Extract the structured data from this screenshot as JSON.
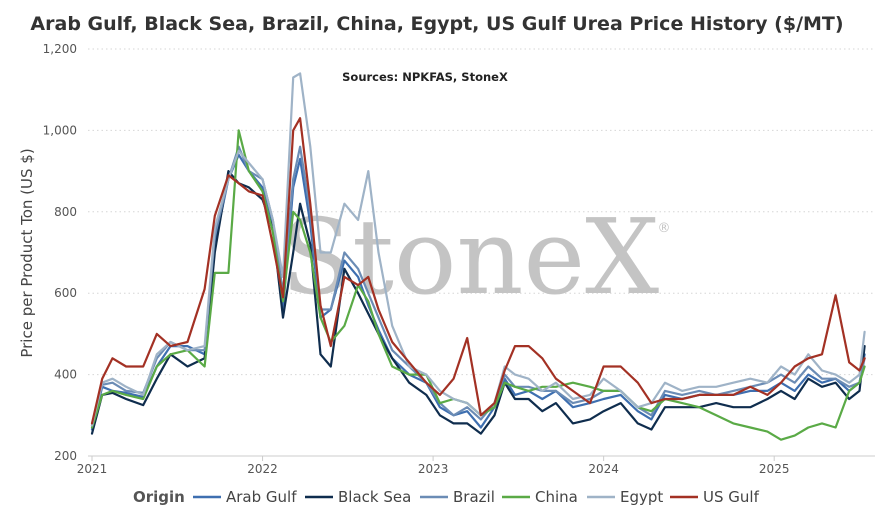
{
  "chart_data": {
    "type": "line",
    "title": "Arab Gulf, Black Sea, Brazil, China, Egypt, US Gulf Urea Price History ($/MT)",
    "subtitle": "Sources: NPKFAS, StoneX",
    "watermark": "StoneX",
    "watermark_mark": "®",
    "ylabel": "Price per Product Ton (US $)",
    "xlabel": "",
    "xlim": [
      2021.0,
      2025.55
    ],
    "ylim": [
      200,
      1200
    ],
    "yticks": [
      200,
      400,
      600,
      800,
      1000,
      1200
    ],
    "ytick_labels": [
      "200",
      "400",
      "600",
      "800",
      "1,000",
      "1,200"
    ],
    "xticks": [
      2021,
      2022,
      2023,
      2024,
      2025
    ],
    "xtick_labels": [
      "2021",
      "2022",
      "2023",
      "2024",
      "2025"
    ],
    "grid": "horizontal-dotted",
    "legend": {
      "title": "Origin",
      "position": "bottom"
    },
    "series": [
      {
        "name": "Arab Gulf",
        "color": "#3e6fb0",
        "x": [
          2021.0,
          2021.06,
          2021.12,
          2021.2,
          2021.3,
          2021.38,
          2021.46,
          2021.56,
          2021.66,
          2021.72,
          2021.8,
          2021.86,
          2021.92,
          2022.0,
          2022.06,
          2022.12,
          2022.18,
          2022.22,
          2022.28,
          2022.34,
          2022.4,
          2022.48,
          2022.56,
          2022.62,
          2022.68,
          2022.76,
          2022.86,
          2022.96,
          2023.04,
          2023.12,
          2023.2,
          2023.28,
          2023.36,
          2023.42,
          2023.48,
          2023.56,
          2023.64,
          2023.72,
          2023.82,
          2023.92,
          2024.0,
          2024.1,
          2024.2,
          2024.28,
          2024.36,
          2024.46,
          2024.56,
          2024.66,
          2024.76,
          2024.86,
          2024.96,
          2025.04,
          2025.12,
          2025.2,
          2025.28,
          2025.36,
          2025.44,
          2025.5,
          2025.53
        ],
        "y": [
          265,
          370,
          360,
          355,
          345,
          420,
          470,
          470,
          450,
          720,
          880,
          940,
          900,
          860,
          760,
          560,
          860,
          930,
          770,
          540,
          560,
          680,
          640,
          570,
          510,
          440,
          400,
          380,
          320,
          300,
          310,
          270,
          320,
          390,
          350,
          360,
          340,
          360,
          320,
          330,
          340,
          350,
          310,
          290,
          350,
          340,
          350,
          350,
          350,
          360,
          360,
          380,
          360,
          400,
          380,
          390,
          360,
          380,
          450
        ]
      },
      {
        "name": "Black Sea",
        "color": "#0f2d4e",
        "x": [
          2021.0,
          2021.06,
          2021.12,
          2021.2,
          2021.3,
          2021.38,
          2021.46,
          2021.56,
          2021.66,
          2021.72,
          2021.8,
          2021.86,
          2021.92,
          2022.0,
          2022.06,
          2022.12,
          2022.18,
          2022.22,
          2022.28,
          2022.34,
          2022.4,
          2022.48,
          2022.56,
          2022.62,
          2022.68,
          2022.76,
          2022.86,
          2022.96,
          2023.04,
          2023.12,
          2023.2,
          2023.28,
          2023.36,
          2023.42,
          2023.48,
          2023.56,
          2023.64,
          2023.72,
          2023.82,
          2023.92,
          2024.0,
          2024.1,
          2024.2,
          2024.28,
          2024.36,
          2024.46,
          2024.56,
          2024.66,
          2024.76,
          2024.86,
          2024.96,
          2025.04,
          2025.12,
          2025.2,
          2025.28,
          2025.36,
          2025.44,
          2025.5,
          2025.53
        ],
        "y": [
          255,
          350,
          355,
          340,
          325,
          390,
          450,
          420,
          440,
          700,
          900,
          870,
          860,
          830,
          760,
          540,
          700,
          820,
          720,
          450,
          420,
          660,
          600,
          550,
          500,
          440,
          380,
          350,
          300,
          280,
          280,
          255,
          300,
          380,
          340,
          340,
          310,
          330,
          280,
          290,
          310,
          330,
          280,
          265,
          320,
          320,
          320,
          330,
          320,
          320,
          340,
          360,
          340,
          390,
          370,
          380,
          340,
          360,
          470
        ]
      },
      {
        "name": "Brazil",
        "color": "#6b8cb5",
        "x": [
          2021.0,
          2021.06,
          2021.12,
          2021.2,
          2021.3,
          2021.38,
          2021.46,
          2021.56,
          2021.66,
          2021.72,
          2021.8,
          2021.86,
          2021.92,
          2022.0,
          2022.06,
          2022.12,
          2022.18,
          2022.22,
          2022.28,
          2022.34,
          2022.4,
          2022.48,
          2022.56,
          2022.62,
          2022.68,
          2022.76,
          2022.86,
          2022.96,
          2023.04,
          2023.12,
          2023.2,
          2023.28,
          2023.36,
          2023.42,
          2023.48,
          2023.56,
          2023.64,
          2023.72,
          2023.82,
          2023.92,
          2024.0,
          2024.1,
          2024.2,
          2024.28,
          2024.36,
          2024.46,
          2024.56,
          2024.66,
          2024.76,
          2024.86,
          2024.96,
          2025.04,
          2025.12,
          2025.2,
          2025.28,
          2025.36,
          2025.44,
          2025.5,
          2025.53
        ],
        "y": [
          275,
          375,
          380,
          360,
          355,
          440,
          480,
          460,
          460,
          740,
          880,
          960,
          900,
          880,
          780,
          600,
          880,
          960,
          800,
          560,
          560,
          700,
          660,
          600,
          540,
          460,
          420,
          380,
          330,
          300,
          320,
          290,
          330,
          400,
          370,
          370,
          360,
          360,
          330,
          340,
          360,
          360,
          320,
          300,
          360,
          350,
          360,
          350,
          360,
          370,
          380,
          400,
          380,
          420,
          390,
          390,
          370,
          380,
          440
        ]
      },
      {
        "name": "China",
        "color": "#5aaa46",
        "x": [
          2021.0,
          2021.06,
          2021.12,
          2021.2,
          2021.3,
          2021.38,
          2021.46,
          2021.56,
          2021.66,
          2021.72,
          2021.8,
          2021.86,
          2021.92,
          2022.0,
          2022.06,
          2022.12,
          2022.18,
          2022.22,
          2022.28,
          2022.34,
          2022.4,
          2022.48,
          2022.56,
          2022.62,
          2022.68,
          2022.76,
          2022.86,
          2022.96,
          2023.04,
          2023.12,
          2023.2,
          2023.28,
          2023.36,
          2023.42,
          2023.48,
          2023.56,
          2023.64,
          2023.72,
          2023.82,
          2023.92,
          2024.0,
          2024.1,
          2024.2,
          2024.28,
          2024.36,
          2024.46,
          2024.56,
          2024.66,
          2024.76,
          2024.86,
          2024.96,
          2025.04,
          2025.12,
          2025.2,
          2025.28,
          2025.36,
          2025.44,
          2025.5,
          2025.53
        ],
        "y": [
          270,
          350,
          360,
          350,
          340,
          420,
          450,
          460,
          420,
          650,
          650,
          1000,
          900,
          850,
          750,
          580,
          800,
          780,
          700,
          540,
          480,
          520,
          620,
          580,
          500,
          420,
          400,
          400,
          330,
          340,
          330,
          300,
          320,
          380,
          370,
          360,
          370,
          370,
          380,
          370,
          360,
          360,
          320,
          310,
          340,
          330,
          320,
          300,
          280,
          270,
          260,
          240,
          250,
          270,
          280,
          270,
          360,
          380,
          420
        ]
      },
      {
        "name": "Egypt",
        "color": "#9fb3c7",
        "x": [
          2021.0,
          2021.06,
          2021.12,
          2021.2,
          2021.3,
          2021.38,
          2021.46,
          2021.56,
          2021.66,
          2021.72,
          2021.8,
          2021.86,
          2021.92,
          2022.0,
          2022.06,
          2022.12,
          2022.18,
          2022.22,
          2022.28,
          2022.34,
          2022.4,
          2022.48,
          2022.56,
          2022.62,
          2022.68,
          2022.76,
          2022.86,
          2022.96,
          2023.04,
          2023.12,
          2023.2,
          2023.28,
          2023.36,
          2023.42,
          2023.48,
          2023.56,
          2023.64,
          2023.72,
          2023.82,
          2023.92,
          2024.0,
          2024.1,
          2024.2,
          2024.28,
          2024.36,
          2024.46,
          2024.56,
          2024.66,
          2024.76,
          2024.86,
          2024.96,
          2025.04,
          2025.12,
          2025.2,
          2025.28,
          2025.36,
          2025.44,
          2025.5,
          2025.53
        ],
        "y": [
          275,
          380,
          390,
          370,
          350,
          450,
          480,
          460,
          470,
          760,
          880,
          950,
          920,
          880,
          780,
          640,
          1130,
          1140,
          960,
          700,
          700,
          820,
          780,
          900,
          700,
          520,
          420,
          400,
          360,
          340,
          330,
          300,
          330,
          420,
          400,
          390,
          360,
          380,
          340,
          350,
          390,
          360,
          320,
          330,
          380,
          360,
          370,
          370,
          380,
          390,
          380,
          420,
          400,
          450,
          410,
          400,
          380,
          400,
          505
        ]
      },
      {
        "name": "US Gulf",
        "color": "#a33124",
        "x": [
          2021.0,
          2021.06,
          2021.12,
          2021.2,
          2021.3,
          2021.38,
          2021.46,
          2021.56,
          2021.66,
          2021.72,
          2021.8,
          2021.86,
          2021.92,
          2022.0,
          2022.06,
          2022.12,
          2022.18,
          2022.22,
          2022.28,
          2022.34,
          2022.4,
          2022.48,
          2022.56,
          2022.62,
          2022.68,
          2022.76,
          2022.86,
          2022.96,
          2023.04,
          2023.12,
          2023.2,
          2023.28,
          2023.36,
          2023.42,
          2023.48,
          2023.56,
          2023.64,
          2023.72,
          2023.82,
          2023.92,
          2024.0,
          2024.1,
          2024.2,
          2024.28,
          2024.36,
          2024.46,
          2024.56,
          2024.66,
          2024.76,
          2024.86,
          2024.96,
          2025.04,
          2025.12,
          2025.2,
          2025.28,
          2025.36,
          2025.44,
          2025.5,
          2025.53
        ],
        "y": [
          280,
          390,
          440,
          420,
          420,
          500,
          470,
          480,
          610,
          790,
          890,
          870,
          850,
          840,
          720,
          590,
          1000,
          1030,
          820,
          570,
          470,
          640,
          620,
          640,
          560,
          480,
          430,
          380,
          350,
          390,
          490,
          300,
          330,
          410,
          470,
          470,
          440,
          390,
          360,
          330,
          420,
          420,
          380,
          330,
          340,
          340,
          350,
          350,
          350,
          370,
          350,
          380,
          420,
          440,
          450,
          595,
          430,
          410,
          440
        ]
      }
    ]
  }
}
